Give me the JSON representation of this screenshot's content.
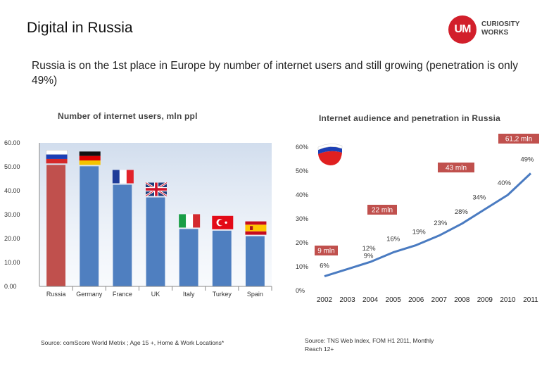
{
  "page": {
    "title": "Digital in Russia",
    "subtitle": "Russia is on the 1st place in Europe by number of internet users and still growing (penetration is only 49%)"
  },
  "logo": {
    "initials": "UM",
    "line1": "CURIOSITY",
    "line2": "WORKS",
    "color": "#d21f2b"
  },
  "sources": {
    "left": "Source: comScore World Metrix ; Age 15 +,  Home & Work Locations*",
    "right": "Source: TNS Web Index, FOM H1 2011, Monthly Reach 12+"
  },
  "colors": {
    "bar_blue": "#4f7fc0",
    "bar_red": "#c0504d",
    "line_blue": "#4a7bc1",
    "callout_red": "#c0504d"
  },
  "chart_data": [
    {
      "type": "bar",
      "title": "Number of internet users, mln ppl",
      "categories": [
        "Russia",
        "Germany",
        "France",
        "UK",
        "Italy",
        "Turkey",
        "Spain"
      ],
      "values": [
        50.8,
        50.2,
        42.5,
        37.2,
        24.0,
        23.3,
        21.0
      ],
      "highlight": "Russia",
      "flag_icons": [
        "russia-flag-icon",
        "germany-flag-icon",
        "france-flag-icon",
        "uk-flag-icon",
        "italy-flag-icon",
        "turkey-flag-icon",
        "spain-flag-icon"
      ],
      "yticks": [
        "60.00",
        "50.00",
        "40.00",
        "30.00",
        "20.00",
        "10.00",
        "0.00"
      ],
      "ylim": [
        0,
        60
      ],
      "xlabel": "",
      "ylabel": ""
    },
    {
      "type": "line",
      "title": "Internet audience and penetration in Russia",
      "x": [
        "2002",
        "2003",
        "2004",
        "2005",
        "2006",
        "2007",
        "2008",
        "2009",
        "2010",
        "2011"
      ],
      "values": [
        6,
        9,
        12,
        16,
        19,
        23,
        28,
        34,
        40,
        49
      ],
      "point_labels": [
        "6%",
        "9%",
        "12%",
        "16%",
        "19%",
        "23%",
        "28%",
        "34%",
        "40%",
        "49%"
      ],
      "yticks": [
        "60%",
        "50%",
        "40%",
        "30%",
        "20%",
        "10%",
        "0%"
      ],
      "ylim": [
        0,
        60
      ],
      "callouts": [
        {
          "year": "2002",
          "text": "9 mln"
        },
        {
          "year": "2005",
          "text": "22 mln"
        },
        {
          "year": "2010",
          "text": "43 mln"
        },
        {
          "year": "2011",
          "text": "61,2 mln"
        }
      ],
      "flag_icon": "russia-flag-icon"
    }
  ]
}
